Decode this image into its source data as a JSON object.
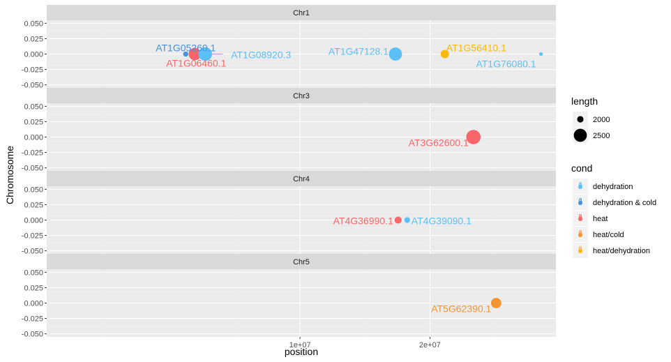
{
  "chart_data": {
    "type": "scatter",
    "xlabel": "position",
    "ylabel": "Chromosome",
    "xlim": [
      -9500000,
      29700000
    ],
    "ylim": [
      -0.05,
      0.05
    ],
    "x_ticks": [
      {
        "value": 10000000,
        "label": "1e+07"
      },
      {
        "value": 20000000,
        "label": "2e+07"
      }
    ],
    "y_ticks": [
      {
        "value": 0.05,
        "label": "0.050"
      },
      {
        "value": 0.025,
        "label": "0.025"
      },
      {
        "value": 0,
        "label": "0.000"
      },
      {
        "value": -0.025,
        "label": "-0.025"
      },
      {
        "value": -0.05,
        "label": "-0.050"
      }
    ],
    "grid": true,
    "facets": [
      {
        "name": "Chr1",
        "points": [
          {
            "gene": "AT1G05260.1",
            "x": 1200000,
            "y": 0,
            "length": 1900,
            "cond": "dehydration & cold",
            "label_dx": 0,
            "label_dy": -9,
            "anchor": "middle"
          },
          {
            "gene": "AT1G06460.1",
            "x": 1900000,
            "y": 0,
            "length": 2450,
            "cond": "heat",
            "label_dx": 2,
            "label_dy": 13,
            "anchor": "middle"
          },
          {
            "gene": "AT1G08920.3",
            "x": 2700000,
            "y": 0,
            "length": 2550,
            "cond": "dehydration",
            "label_dx": 37,
            "label_dy": 1,
            "anchor": "start"
          },
          {
            "gene": "AT1G47128.1",
            "x": 17350000,
            "y": 0,
            "length": 2500,
            "cond": "dehydration",
            "label_dx": -10,
            "label_dy": -4,
            "anchor": "end"
          },
          {
            "gene": "AT1G56410.1",
            "x": 21150000,
            "y": 0,
            "length": 2150,
            "cond": "heat/dehydration",
            "label_dx": 2,
            "label_dy": -9,
            "anchor": "start"
          },
          {
            "gene": "AT1G76080.1",
            "x": 28550000,
            "y": 0,
            "length": 1800,
            "cond": "dehydration",
            "label_dx": -7,
            "label_dy": 14,
            "anchor": "end"
          }
        ],
        "segments": [
          {
            "from_x": 2700000,
            "to_x": 4050000,
            "y": 0,
            "cond": "dehydration"
          }
        ]
      },
      {
        "name": "Chr3",
        "points": [
          {
            "gene": "AT3G62600.1",
            "x": 23350000,
            "y": 0,
            "length": 2600,
            "cond": "heat",
            "label_dx": -7,
            "label_dy": 8,
            "anchor": "end"
          }
        ],
        "segments": []
      },
      {
        "name": "Chr4",
        "points": [
          {
            "gene": "AT4G36990.1",
            "x": 17550000,
            "y": 0,
            "length": 2050,
            "cond": "heat",
            "label_dx": -7,
            "label_dy": 1,
            "anchor": "end"
          },
          {
            "gene": "AT4G39090.1",
            "x": 18250000,
            "y": 0,
            "length": 1950,
            "cond": "dehydration",
            "label_dx": 6,
            "label_dy": 1,
            "anchor": "start"
          }
        ],
        "segments": []
      },
      {
        "name": "Chr5",
        "points": [
          {
            "gene": "AT5G62390.1",
            "x": 25100000,
            "y": 0,
            "length": 2300,
            "cond": "heat/cold",
            "label_dx": -7,
            "label_dy": 8,
            "anchor": "end"
          }
        ],
        "segments": []
      }
    ],
    "legend_length": {
      "title": "length",
      "entries": [
        {
          "value": 2000,
          "label": "2000"
        },
        {
          "value": 2500,
          "label": "2500"
        }
      ]
    },
    "legend_cond": {
      "title": "cond",
      "entries": [
        {
          "key": "dehydration",
          "label": "dehydration",
          "color": "#5bc0f8"
        },
        {
          "key": "dehydration & cold",
          "label": "dehydration & cold",
          "color": "#4a90d9"
        },
        {
          "key": "heat",
          "label": "heat",
          "color": "#f8666a"
        },
        {
          "key": "heat/cold",
          "label": "heat/cold",
          "color": "#f59432"
        },
        {
          "key": "heat/dehydration",
          "label": "heat/dehydration",
          "color": "#f9b811"
        }
      ]
    },
    "colors": {
      "panel_background": "#ebebeb",
      "strip_background": "#d9d9d9",
      "grid_major": "#ffffff",
      "grid_minor": "#f2f2f2"
    }
  }
}
